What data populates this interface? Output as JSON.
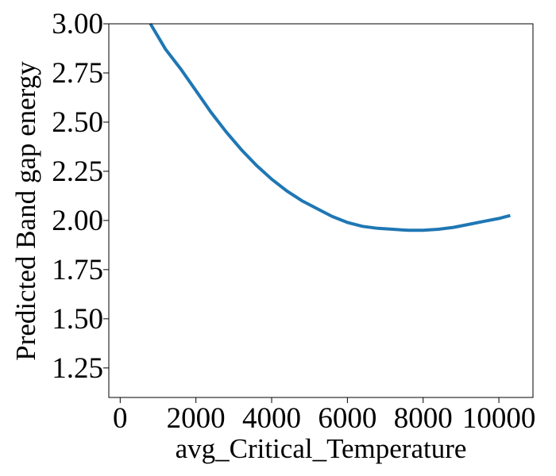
{
  "chart_data": {
    "type": "line",
    "title": "",
    "xlabel": "avg_Critical_Temperature",
    "ylabel": "Predicted Band gap energy",
    "xlim": [
      -300,
      10900
    ],
    "ylim": [
      1.1,
      3.0
    ],
    "xticks": [
      0,
      2000,
      4000,
      6000,
      8000,
      10000
    ],
    "yticks": [
      1.25,
      1.5,
      1.75,
      2.0,
      2.25,
      2.5,
      2.75,
      3.0
    ],
    "xtick_labels": [
      "0",
      "2000",
      "4000",
      "6000",
      "8000",
      "10000"
    ],
    "ytick_labels": [
      "1.25",
      "1.50",
      "1.75",
      "2.00",
      "2.25",
      "2.50",
      "2.75",
      "3.00"
    ],
    "grid": false,
    "legend": "none",
    "series": [
      {
        "color": "#1f77b4",
        "x": [
          800,
          1200,
          1600,
          2000,
          2400,
          2800,
          3200,
          3600,
          4000,
          4400,
          4800,
          5200,
          5600,
          6000,
          6400,
          6800,
          7200,
          7600,
          8000,
          8400,
          8800,
          9200,
          9600,
          10000,
          10300
        ],
        "y": [
          3.0,
          2.87,
          2.77,
          2.66,
          2.55,
          2.45,
          2.36,
          2.28,
          2.21,
          2.15,
          2.1,
          2.06,
          2.02,
          1.99,
          1.97,
          1.96,
          1.955,
          1.95,
          1.95,
          1.955,
          1.965,
          1.98,
          1.995,
          2.01,
          2.025
        ]
      }
    ]
  }
}
